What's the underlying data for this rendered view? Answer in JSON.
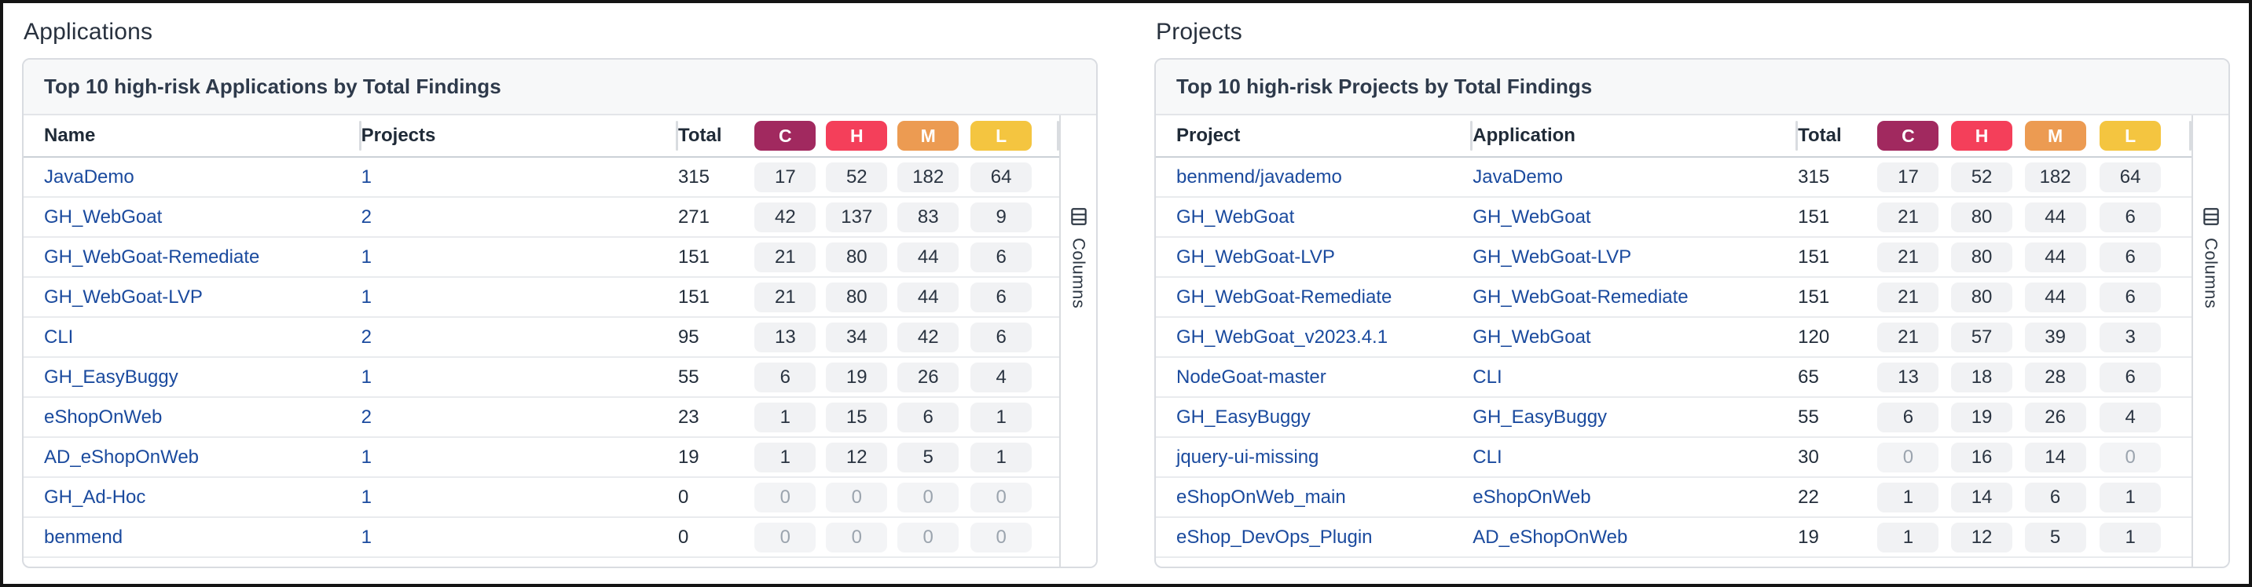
{
  "colors": {
    "critical": "#a1295f",
    "high": "#f43f5a",
    "medium": "#ec9b52",
    "low": "#f4c540",
    "link": "#1a4a9e"
  },
  "applications": {
    "section_title": "Applications",
    "card_title": "Top 10 high-risk Applications by Total Findings",
    "headers": {
      "name": "Name",
      "projects": "Projects",
      "total": "Total",
      "critical": "C",
      "high": "H",
      "medium": "M",
      "low": "L"
    },
    "columns_button_label": "Columns",
    "rows": [
      {
        "name": "JavaDemo",
        "projects": "1",
        "total": "315",
        "c": "17",
        "h": "52",
        "m": "182",
        "l": "64"
      },
      {
        "name": "GH_WebGoat",
        "projects": "2",
        "total": "271",
        "c": "42",
        "h": "137",
        "m": "83",
        "l": "9"
      },
      {
        "name": "GH_WebGoat-Remediate",
        "projects": "1",
        "total": "151",
        "c": "21",
        "h": "80",
        "m": "44",
        "l": "6"
      },
      {
        "name": "GH_WebGoat-LVP",
        "projects": "1",
        "total": "151",
        "c": "21",
        "h": "80",
        "m": "44",
        "l": "6"
      },
      {
        "name": "CLI",
        "projects": "2",
        "total": "95",
        "c": "13",
        "h": "34",
        "m": "42",
        "l": "6"
      },
      {
        "name": "GH_EasyBuggy",
        "projects": "1",
        "total": "55",
        "c": "6",
        "h": "19",
        "m": "26",
        "l": "4"
      },
      {
        "name": "eShopOnWeb",
        "projects": "2",
        "total": "23",
        "c": "1",
        "h": "15",
        "m": "6",
        "l": "1"
      },
      {
        "name": "AD_eShopOnWeb",
        "projects": "1",
        "total": "19",
        "c": "1",
        "h": "12",
        "m": "5",
        "l": "1"
      },
      {
        "name": "GH_Ad-Hoc",
        "projects": "1",
        "total": "0",
        "c": "0",
        "h": "0",
        "m": "0",
        "l": "0"
      },
      {
        "name": "benmend",
        "projects": "1",
        "total": "0",
        "c": "0",
        "h": "0",
        "m": "0",
        "l": "0"
      }
    ]
  },
  "projects": {
    "section_title": "Projects",
    "card_title": "Top 10 high-risk Projects by Total Findings",
    "headers": {
      "project": "Project",
      "application": "Application",
      "total": "Total",
      "critical": "C",
      "high": "H",
      "medium": "M",
      "low": "L"
    },
    "columns_button_label": "Columns",
    "rows": [
      {
        "project": "benmend/javademo",
        "application": "JavaDemo",
        "total": "315",
        "c": "17",
        "h": "52",
        "m": "182",
        "l": "64"
      },
      {
        "project": "GH_WebGoat",
        "application": "GH_WebGoat",
        "total": "151",
        "c": "21",
        "h": "80",
        "m": "44",
        "l": "6"
      },
      {
        "project": "GH_WebGoat-LVP",
        "application": "GH_WebGoat-LVP",
        "total": "151",
        "c": "21",
        "h": "80",
        "m": "44",
        "l": "6"
      },
      {
        "project": "GH_WebGoat-Remediate",
        "application": "GH_WebGoat-Remediate",
        "total": "151",
        "c": "21",
        "h": "80",
        "m": "44",
        "l": "6"
      },
      {
        "project": "GH_WebGoat_v2023.4.1",
        "application": "GH_WebGoat",
        "total": "120",
        "c": "21",
        "h": "57",
        "m": "39",
        "l": "3"
      },
      {
        "project": "NodeGoat-master",
        "application": "CLI",
        "total": "65",
        "c": "13",
        "h": "18",
        "m": "28",
        "l": "6"
      },
      {
        "project": "GH_EasyBuggy",
        "application": "GH_EasyBuggy",
        "total": "55",
        "c": "6",
        "h": "19",
        "m": "26",
        "l": "4"
      },
      {
        "project": "jquery-ui-missing",
        "application": "CLI",
        "total": "30",
        "c": "0",
        "h": "16",
        "m": "14",
        "l": "0"
      },
      {
        "project": "eShopOnWeb_main",
        "application": "eShopOnWeb",
        "total": "22",
        "c": "1",
        "h": "14",
        "m": "6",
        "l": "1"
      },
      {
        "project": "eShop_DevOps_Plugin",
        "application": "AD_eShopOnWeb",
        "total": "19",
        "c": "1",
        "h": "12",
        "m": "5",
        "l": "1"
      }
    ]
  }
}
